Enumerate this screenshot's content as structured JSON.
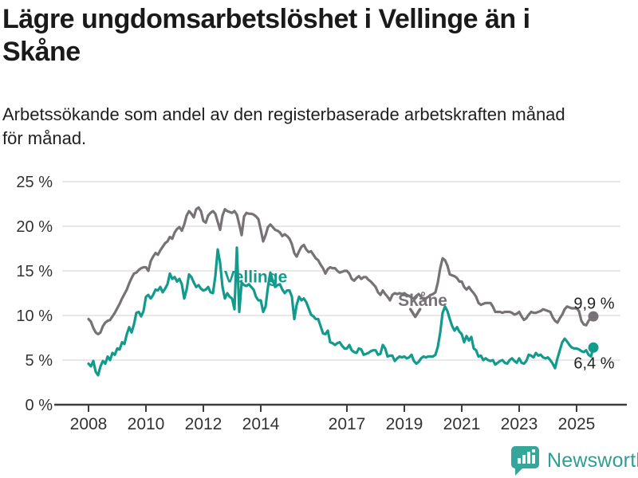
{
  "title": "Lägre ungdomsarbetslöshet i Vellinge än i Skåne",
  "title_lines": [
    "Lägre ungdomsarbetslöshet i Vellinge än i",
    "Skåne"
  ],
  "subtitle": "Arbetssökande som andel av den registerbaserade arbetskraften månad för månad.",
  "subtitle_lines": [
    "Arbetssökande som andel av den registerbaserade arbetskraften månad",
    "för månad."
  ],
  "branding": {
    "logo_text": "Newsworthy",
    "logo_icon": "bar-chart-speech-bubble-icon",
    "logo_color": "#2e9e93"
  },
  "colors": {
    "vellinge": "#129a8d",
    "skane": "#767276",
    "grid": "#d9d9d9",
    "axis": "#3d3d3d",
    "tick_text": "#333333",
    "value_text": "#222222",
    "title_text": "#1a1a1a"
  },
  "chart_data": {
    "type": "line",
    "frequency": "monthly",
    "x_start": {
      "year": 2008,
      "month": 1
    },
    "x_end": {
      "year": 2025,
      "month": 8
    },
    "ylim": [
      0,
      25
    ],
    "grid": "horizontal",
    "yticks": [
      {
        "v": 0,
        "label": "0 %"
      },
      {
        "v": 5,
        "label": "5 %"
      },
      {
        "v": 10,
        "label": "10 %"
      },
      {
        "v": 15,
        "label": "15 %"
      },
      {
        "v": 20,
        "label": "20 %"
      },
      {
        "v": 25,
        "label": "25 %"
      }
    ],
    "xticks": [
      {
        "year": 2008,
        "label": "2008"
      },
      {
        "year": 2010,
        "label": "2010"
      },
      {
        "year": 2012,
        "label": "2012"
      },
      {
        "year": 2014,
        "label": "2014"
      },
      {
        "year": 2017,
        "label": "2017"
      },
      {
        "year": 2019,
        "label": "2019"
      },
      {
        "year": 2021,
        "label": "2021"
      },
      {
        "year": 2023,
        "label": "2023"
      },
      {
        "year": 2025,
        "label": "2025"
      }
    ],
    "series": [
      {
        "name": "Skåne",
        "slug": "skane",
        "color": "#767276",
        "end_label": "9,9 %",
        "end_dot": true,
        "values": [
          9.6,
          9.3,
          8.6,
          8.1,
          7.9,
          8.1,
          8.8,
          9.2,
          9.4,
          9.5,
          9.9,
          10.3,
          10.8,
          11.3,
          11.9,
          12.4,
          12.9,
          13.6,
          14.2,
          14.7,
          14.8,
          15.1,
          15.3,
          15.4,
          15.4,
          15.0,
          16.1,
          16.6,
          17.0,
          16.8,
          17.3,
          17.7,
          18.1,
          18.3,
          18.8,
          18.6,
          19.3,
          19.7,
          19.9,
          19.5,
          20.2,
          21.2,
          21.7,
          21.4,
          21.0,
          21.9,
          22.1,
          21.7,
          20.6,
          20.4,
          21.2,
          21.5,
          21.7,
          21.4,
          20.5,
          19.6,
          21.2,
          21.9,
          21.7,
          21.6,
          21.5,
          21.7,
          21.3,
          20.2,
          19.0,
          21.1,
          21.5,
          21.4,
          21.4,
          21.3,
          21.1,
          20.8,
          19.6,
          18.3,
          19.0,
          19.9,
          20.2,
          19.9,
          19.6,
          19.5,
          19.3,
          18.9,
          19.1,
          18.9,
          18.6,
          18.0,
          17.0,
          16.6,
          17.2,
          17.7,
          17.9,
          17.4,
          17.1,
          17.2,
          16.8,
          16.4,
          16.2,
          15.7,
          15.3,
          14.7,
          15.2,
          15.4,
          15.3,
          15.3,
          15.0,
          14.8,
          14.9,
          15.0,
          15.0,
          14.7,
          14.1,
          13.9,
          14.2,
          14.4,
          14.1,
          14.3,
          14.3,
          14.0,
          13.8,
          13.5,
          13.2,
          12.6,
          12.3,
          12.8,
          12.4,
          12.1,
          11.7,
          12.3,
          12.5,
          12.4,
          12.5,
          12.4,
          12.5,
          12.3,
          12.2,
          12.0,
          11.9,
          12.2,
          12.4,
          12.1,
          11.8,
          11.9,
          12.1,
          12.3,
          12.4,
          12.6,
          13.7,
          15.3,
          16.4,
          16.2,
          15.6,
          14.6,
          14.5,
          14.4,
          14.2,
          13.8,
          13.8,
          13.2,
          12.9,
          13.2,
          12.8,
          12.5,
          12.1,
          11.4,
          11.2,
          11.3,
          11.4,
          11.4,
          11.4,
          11.0,
          10.4,
          10.4,
          10.4,
          10.3,
          10.4,
          10.4,
          10.4,
          10.3,
          10.1,
          10.2,
          10.4,
          9.9,
          9.5,
          9.7,
          10.1,
          10.4,
          10.3,
          10.3,
          10.4,
          10.5,
          10.7,
          10.6,
          10.5,
          10.4,
          9.8,
          9.4,
          9.2,
          9.7,
          10.1,
          10.7,
          11.0,
          10.9,
          10.8,
          10.8,
          10.8,
          10.5,
          9.4,
          9.0,
          8.9,
          9.4,
          9.8,
          9.9
        ]
      },
      {
        "name": "Vellinge",
        "slug": "vellinge",
        "color": "#129a8d",
        "end_label": "6,4 %",
        "end_dot": true,
        "values": [
          4.6,
          4.3,
          4.9,
          3.7,
          3.3,
          4.3,
          4.9,
          4.6,
          5.4,
          5.0,
          5.8,
          5.6,
          6.3,
          6.2,
          7.0,
          6.8,
          7.9,
          8.7,
          8.1,
          9.0,
          10.3,
          10.4,
          9.9,
          10.5,
          12.1,
          12.3,
          11.9,
          12.3,
          12.9,
          12.8,
          13.2,
          12.6,
          13.0,
          13.5,
          14.7,
          14.1,
          14.3,
          13.8,
          14.1,
          13.5,
          11.9,
          12.9,
          14.6,
          14.3,
          13.7,
          13.2,
          13.4,
          13.0,
          12.8,
          12.9,
          13.2,
          12.6,
          12.5,
          14.4,
          17.4,
          15.9,
          13.2,
          11.9,
          12.5,
          12.1,
          11.9,
          10.7,
          17.6,
          10.4,
          13.7,
          13.4,
          13.3,
          13.5,
          13.2,
          12.9,
          12.1,
          11.7,
          11.7,
          10.4,
          11.0,
          13.2,
          14.8,
          13.9,
          13.2,
          13.4,
          13.5,
          12.9,
          12.5,
          12.8,
          12.8,
          12.1,
          9.6,
          11.2,
          12.1,
          11.7,
          11.9,
          11.5,
          10.8,
          10.1,
          9.9,
          9.6,
          9.6,
          8.8,
          8.0,
          7.9,
          8.3,
          7.0,
          6.9,
          6.7,
          6.9,
          7.0,
          6.6,
          6.3,
          6.3,
          6.7,
          6.1,
          5.9,
          5.8,
          6.3,
          6.2,
          5.6,
          5.7,
          5.8,
          6.0,
          6.1,
          6.1,
          5.6,
          5.7,
          6.7,
          6.3,
          5.4,
          5.5,
          5.5,
          4.9,
          5.2,
          5.4,
          5.3,
          5.4,
          5.2,
          5.3,
          5.6,
          4.9,
          4.6,
          4.8,
          5.2,
          5.4,
          5.3,
          5.4,
          5.4,
          5.4,
          5.6,
          6.5,
          8.1,
          10.3,
          11.0,
          10.5,
          9.6,
          8.8,
          8.3,
          8.7,
          8.2,
          7.9,
          7.0,
          7.7,
          7.2,
          7.6,
          6.3,
          6.1,
          5.4,
          5.5,
          5.0,
          5.2,
          5.0,
          4.9,
          5.0,
          4.5,
          4.7,
          4.9,
          5.0,
          4.7,
          4.6,
          5.0,
          5.2,
          4.9,
          4.7,
          5.2,
          4.7,
          4.6,
          4.9,
          5.6,
          5.5,
          5.3,
          5.8,
          5.5,
          5.6,
          5.3,
          5.2,
          5.3,
          5.0,
          4.6,
          4.1,
          5.2,
          6.1,
          7.0,
          7.4,
          7.1,
          6.7,
          6.4,
          6.3,
          6.3,
          6.2,
          6.0,
          5.9,
          6.1,
          5.6,
          5.4,
          6.4
        ]
      }
    ],
    "annotations": [
      {
        "id": "vellinge-series-label",
        "kind": "text",
        "text": "Vellinge",
        "x": 2012.72,
        "y": 13.7,
        "color": "#129a8d",
        "weight": "bold",
        "anchor": "start",
        "size": 21
      },
      {
        "id": "skane-series-label",
        "kind": "text",
        "text": "Skåne",
        "x": 2018.78,
        "y": 11.05,
        "color": "#767276",
        "weight": "bold",
        "anchor": "start",
        "size": 21
      },
      {
        "id": "skane-label-arrow",
        "kind": "arrow",
        "x": 2019.38,
        "y_from": 10.7,
        "y_to": 9.85,
        "color": "#767276"
      },
      {
        "id": "skane-end-value",
        "kind": "text",
        "text": "9,9 %",
        "x": 2026.32,
        "y": 10.75,
        "color": "#222222",
        "weight": "normal",
        "anchor": "end",
        "size": 20
      },
      {
        "id": "vellinge-end-value",
        "kind": "text",
        "text": "6,4 %",
        "x": 2026.32,
        "y": 4.05,
        "color": "#222222",
        "weight": "normal",
        "anchor": "end",
        "size": 20
      }
    ]
  }
}
